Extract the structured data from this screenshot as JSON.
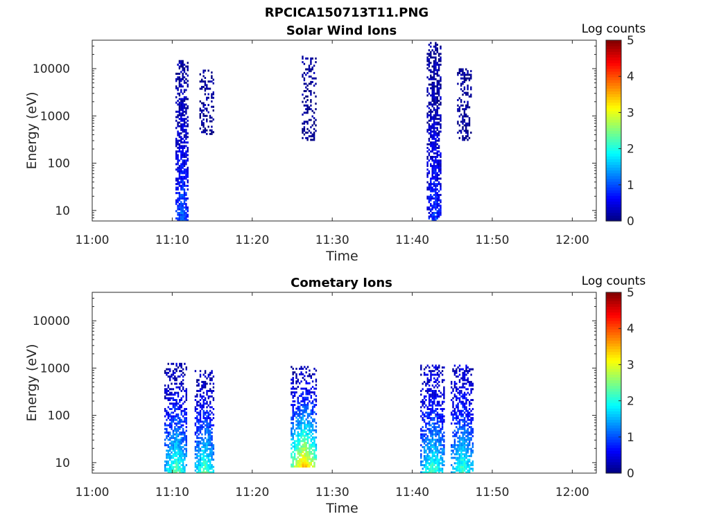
{
  "figure_title": "RPCICA150713T11.PNG",
  "chart_data": [
    {
      "type": "heatmap",
      "title": "Solar Wind Ions",
      "xlabel": "Time",
      "ylabel": "Energy (eV)",
      "x_ticks": [
        "11:00",
        "11:10",
        "11:20",
        "11:30",
        "11:40",
        "11:50",
        "12:00"
      ],
      "x_range_minutes": [
        0,
        63
      ],
      "y_scale": "log",
      "y_ticks": [
        10,
        100,
        1000,
        10000
      ],
      "y_range_eV": [
        6,
        40000
      ],
      "colorbar": {
        "label": "Log counts",
        "range": [
          0,
          5
        ],
        "ticks": [
          0,
          1,
          2,
          3,
          4,
          5
        ],
        "colormap": "jet"
      },
      "clusters": [
        {
          "t_start_min": 10.4,
          "t_end_min": 11.9,
          "e_min_eV": 6,
          "e_max_eV": 15000,
          "low_level": 1.2,
          "high_level": 0.15,
          "density_low": 0.9,
          "density_high": 0.55
        },
        {
          "t_start_min": 13.4,
          "t_end_min": 15.2,
          "e_min_eV": 400,
          "e_max_eV": 9000,
          "low_level": 0.1,
          "high_level": 0.1,
          "density_low": 0.35,
          "density_high": 0.35
        },
        {
          "t_start_min": 26.2,
          "t_end_min": 28.0,
          "e_min_eV": 300,
          "e_max_eV": 18000,
          "low_level": 0.1,
          "high_level": 0.1,
          "density_low": 0.35,
          "density_high": 0.35
        },
        {
          "t_start_min": 41.8,
          "t_end_min": 43.6,
          "e_min_eV": 6,
          "e_max_eV": 35000,
          "low_level": 0.9,
          "high_level": 0.15,
          "density_low": 0.9,
          "density_high": 0.55
        },
        {
          "t_start_min": 45.6,
          "t_end_min": 47.3,
          "e_min_eV": 300,
          "e_max_eV": 10000,
          "low_level": 0.1,
          "high_level": 0.1,
          "density_low": 0.4,
          "density_high": 0.4
        }
      ]
    },
    {
      "type": "heatmap",
      "title": "Cometary Ions",
      "xlabel": "Time",
      "ylabel": "Energy (eV)",
      "x_ticks": [
        "11:00",
        "11:10",
        "11:20",
        "11:30",
        "11:40",
        "11:50",
        "12:00"
      ],
      "x_range_minutes": [
        0,
        63
      ],
      "y_scale": "log",
      "y_ticks": [
        10,
        100,
        1000,
        10000
      ],
      "y_range_eV": [
        6,
        40000
      ],
      "colorbar": {
        "label": "Log counts",
        "range": [
          0,
          5
        ],
        "ticks": [
          0,
          1,
          2,
          3,
          4,
          5
        ],
        "colormap": "jet"
      },
      "clusters": [
        {
          "t_start_min": 9.0,
          "t_end_min": 11.8,
          "e_min_eV": 6,
          "e_max_eV": 1200,
          "low_level": 2.4,
          "high_level": 0.3,
          "density_low": 0.95,
          "density_high": 0.35
        },
        {
          "t_start_min": 12.8,
          "t_end_min": 15.2,
          "e_min_eV": 6,
          "e_max_eV": 900,
          "low_level": 2.4,
          "high_level": 0.3,
          "density_low": 0.95,
          "density_high": 0.35
        },
        {
          "t_start_min": 24.8,
          "t_end_min": 28.0,
          "e_min_eV": 8,
          "e_max_eV": 1100,
          "low_level": 3.6,
          "high_level": 0.3,
          "density_low": 0.95,
          "density_high": 0.35
        },
        {
          "t_start_min": 41.0,
          "t_end_min": 44.0,
          "e_min_eV": 6,
          "e_max_eV": 1100,
          "low_level": 2.3,
          "high_level": 0.4,
          "density_low": 0.95,
          "density_high": 0.4
        },
        {
          "t_start_min": 44.8,
          "t_end_min": 47.6,
          "e_min_eV": 6,
          "e_max_eV": 1100,
          "low_level": 2.3,
          "high_level": 0.4,
          "density_low": 0.95,
          "density_high": 0.4
        }
      ]
    }
  ]
}
